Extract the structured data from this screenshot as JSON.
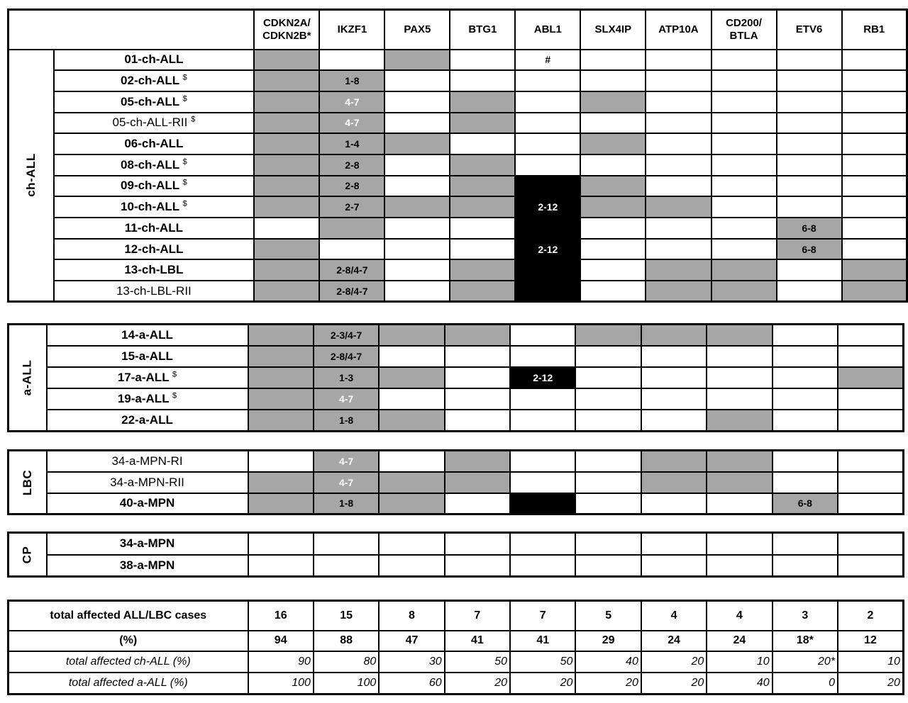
{
  "colors": {
    "cell-gray": "#a6a6a6",
    "cell-black": "#000000",
    "cell-white": "#ffffff",
    "border": "#000000",
    "text": "#000000",
    "text-on-dark": "#ffffff"
  },
  "chart_data": {
    "type": "heatmap",
    "description_of_states": {
      "w": "white cell",
      "g": "gray cell",
      "b": "black cell"
    },
    "columns": [
      "CDKN2A/\nCDKN2B*",
      "IKZF1",
      "PAX5",
      "BTG1",
      "ABL1",
      "SLX4IP",
      "ATP10A",
      "CD200/\nBTLA",
      "ETV6",
      "RB1"
    ],
    "groups": [
      {
        "label": "ch-ALL",
        "rows": [
          {
            "label": "01-ch-ALL",
            "sup": "",
            "bold": true,
            "cells": [
              "g",
              "w",
              "g",
              "w",
              [
                "w",
                "#"
              ],
              "w",
              "w",
              "w",
              "w",
              "w"
            ]
          },
          {
            "label": "02-ch-ALL",
            "sup": "$",
            "bold": true,
            "cells": [
              "g",
              [
                "g",
                "1-8"
              ],
              "w",
              "w",
              "w",
              "w",
              "w",
              "w",
              "w",
              "w"
            ]
          },
          {
            "label": "05-ch-ALL",
            "sup": "$",
            "bold": true,
            "cells": [
              "g",
              [
                "g",
                "4-7",
                "white"
              ],
              "w",
              "g",
              "w",
              "g",
              "w",
              "w",
              "w",
              "w"
            ]
          },
          {
            "label": "05-ch-ALL-RII",
            "sup": "$",
            "bold": false,
            "cells": [
              "g",
              [
                "g",
                "4-7",
                "white"
              ],
              "w",
              "g",
              "w",
              "w",
              "w",
              "w",
              "w",
              "w"
            ]
          },
          {
            "label": "06-ch-ALL",
            "sup": "",
            "bold": true,
            "cells": [
              "g",
              [
                "g",
                "1-4"
              ],
              "g",
              "w",
              "w",
              "g",
              "w",
              "w",
              "w",
              "w"
            ]
          },
          {
            "label": "08-ch-ALL",
            "sup": "$",
            "bold": true,
            "cells": [
              "g",
              [
                "g",
                "2-8"
              ],
              "w",
              "g",
              "w",
              "w",
              "w",
              "w",
              "w",
              "w"
            ]
          },
          {
            "label": "09-ch-ALL",
            "sup": "$",
            "bold": true,
            "cells": [
              "g",
              [
                "g",
                "2-8"
              ],
              "w",
              "g",
              "b",
              "g",
              "w",
              "w",
              "w",
              "w"
            ]
          },
          {
            "label": "10-ch-ALL",
            "sup": "$",
            "bold": true,
            "cells": [
              "g",
              [
                "g",
                "2-7"
              ],
              "g",
              "g",
              [
                "b",
                "2-12",
                "white"
              ],
              "g",
              "g",
              "w",
              "w",
              "w"
            ]
          },
          {
            "label": "11-ch-ALL",
            "sup": "",
            "bold": true,
            "cells": [
              "w",
              "g",
              "w",
              "w",
              "b",
              "w",
              "w",
              "w",
              [
                "g",
                "6-8"
              ],
              "w"
            ]
          },
          {
            "label": "12-ch-ALL",
            "sup": "",
            "bold": true,
            "cells": [
              "g",
              "w",
              "w",
              "w",
              [
                "b",
                "2-12",
                "white"
              ],
              "w",
              "w",
              "w",
              [
                "g",
                "6-8"
              ],
              "w"
            ]
          },
          {
            "label": "13-ch-LBL",
            "sup": "",
            "bold": true,
            "cells": [
              "g",
              [
                "g",
                "2-8/4-7"
              ],
              "w",
              "g",
              "b",
              "w",
              "g",
              "g",
              "w",
              "g"
            ]
          },
          {
            "label": "13-ch-LBL-RII",
            "sup": "",
            "bold": false,
            "cells": [
              "g",
              [
                "g",
                "2-8/4-7"
              ],
              "w",
              "g",
              "b",
              "w",
              "g",
              "g",
              "w",
              "g"
            ]
          }
        ]
      },
      {
        "label": "a-ALL",
        "rows": [
          {
            "label": "14-a-ALL",
            "sup": "",
            "bold": true,
            "cells": [
              "g",
              [
                "g",
                "2-3/4-7"
              ],
              "g",
              "g",
              "w",
              "g",
              "g",
              "g",
              "w",
              "w"
            ]
          },
          {
            "label": "15-a-ALL",
            "sup": "",
            "bold": true,
            "cells": [
              "g",
              [
                "g",
                "2-8/4-7"
              ],
              "w",
              "w",
              "w",
              "w",
              "w",
              "w",
              "w",
              "w"
            ]
          },
          {
            "label": "17-a-ALL",
            "sup": "$",
            "bold": true,
            "cells": [
              "g",
              [
                "g",
                "1-3"
              ],
              "g",
              "w",
              [
                "b",
                "2-12",
                "white"
              ],
              "w",
              "w",
              "w",
              "w",
              "g"
            ]
          },
          {
            "label": "19-a-ALL",
            "sup": "$",
            "bold": true,
            "cells": [
              "g",
              [
                "g",
                "4-7",
                "white"
              ],
              "w",
              "w",
              "w",
              "w",
              "w",
              "w",
              "w",
              "w"
            ]
          },
          {
            "label": "22-a-ALL",
            "sup": "",
            "bold": true,
            "cells": [
              "g",
              [
                "g",
                "1-8"
              ],
              "g",
              "w",
              "w",
              "w",
              "w",
              "g",
              "w",
              "w"
            ]
          }
        ]
      },
      {
        "label": "LBC",
        "rows": [
          {
            "label": "34-a-MPN-RI",
            "sup": "",
            "bold": false,
            "cells": [
              "w",
              [
                "g",
                "4-7",
                "white"
              ],
              "w",
              "g",
              "w",
              "w",
              "g",
              "g",
              "w",
              "w"
            ]
          },
          {
            "label": "34-a-MPN-RII",
            "sup": "",
            "bold": false,
            "cells": [
              "g",
              [
                "g",
                "4-7",
                "white"
              ],
              "g",
              "g",
              "w",
              "w",
              "g",
              "g",
              "w",
              "w"
            ]
          },
          {
            "label": "40-a-MPN",
            "sup": "",
            "bold": true,
            "cells": [
              "g",
              [
                "g",
                "1-8"
              ],
              "g",
              "w",
              "b",
              "w",
              "w",
              "w",
              [
                "g",
                "6-8"
              ],
              "w"
            ]
          }
        ]
      },
      {
        "label": "CP",
        "rows": [
          {
            "label": "34-a-MPN",
            "sup": "",
            "bold": true,
            "cells": [
              "w",
              "w",
              "w",
              "w",
              "w",
              "w",
              "w",
              "w",
              "w",
              "w"
            ]
          },
          {
            "label": "38-a-MPN",
            "sup": "",
            "bold": true,
            "cells": [
              "w",
              "w",
              "w",
              "w",
              "w",
              "w",
              "w",
              "w",
              "w",
              "w"
            ]
          }
        ]
      }
    ],
    "totals": {
      "rows": [
        {
          "label": "total affected ALL/LBC cases",
          "style": "bold",
          "values": [
            "16",
            "15",
            "8",
            "7",
            "7",
            "5",
            "4",
            "4",
            "3",
            "2"
          ]
        },
        {
          "label": "(%)",
          "style": "bold",
          "values": [
            "94",
            "88",
            "47",
            "41",
            "41",
            "29",
            "24",
            "24",
            "18*",
            "12"
          ]
        },
        {
          "label": "total affected ch-ALL (%)",
          "style": "italic",
          "values": [
            "90",
            "80",
            "30",
            "50",
            "50",
            "40",
            "20",
            "10",
            "20*",
            "10"
          ]
        },
        {
          "label": "total affected a-ALL (%)",
          "style": "italic",
          "values": [
            "100",
            "100",
            "60",
            "20",
            "20",
            "20",
            "20",
            "40",
            "0",
            "20"
          ]
        }
      ]
    }
  }
}
